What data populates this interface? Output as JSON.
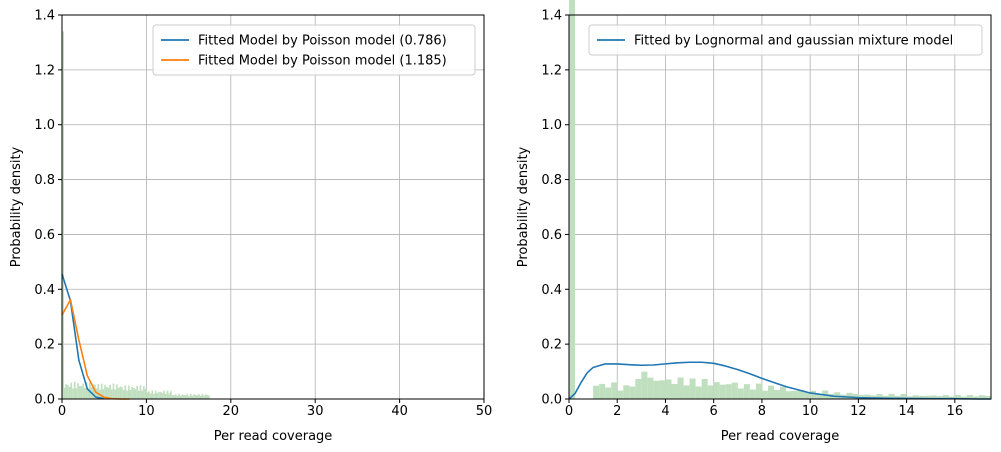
{
  "colors": {
    "series_blue": "#1f77b4",
    "series_orange": "#ff7f0e",
    "histogram": "#bfdfbf",
    "grid": "#b0b0b0",
    "axes": "#000000",
    "legend_border": "#cccccc"
  },
  "chart_data": [
    {
      "type": "line",
      "xlabel": "Per read coverage",
      "ylabel": "Probability density",
      "xlim": [
        0,
        50
      ],
      "ylim": [
        0,
        1.4
      ],
      "xticks": [
        0,
        10,
        20,
        30,
        40,
        50
      ],
      "yticks": [
        0.0,
        0.2,
        0.4,
        0.6,
        0.8,
        1.0,
        1.2,
        1.4
      ],
      "xtick_labels": [
        "0",
        "10",
        "20",
        "30",
        "40",
        "50"
      ],
      "ytick_labels": [
        "0.0",
        "0.2",
        "0.4",
        "0.6",
        "0.8",
        "1.0",
        "1.2",
        "1.4"
      ],
      "grid": true,
      "legend_position": "top-right",
      "histogram": {
        "bin_width": 0.2,
        "spike": {
          "x": 0,
          "height": 1.34
        },
        "bins": [
          {
            "start": 0.2,
            "end": 4.0,
            "height": 0.05
          },
          {
            "start": 4.0,
            "end": 7.0,
            "height": 0.045
          },
          {
            "start": 7.0,
            "end": 10.0,
            "height": 0.04
          },
          {
            "start": 10.0,
            "end": 13.0,
            "height": 0.025
          },
          {
            "start": 13.0,
            "end": 17.5,
            "height": 0.015
          }
        ]
      },
      "series": [
        {
          "name": "Fitted Model by Poisson model (0.786)",
          "color": "#1f77b4",
          "x": [
            0,
            1,
            2,
            3,
            4,
            5
          ],
          "y": [
            0.456,
            0.358,
            0.141,
            0.037,
            0.007,
            0.001
          ]
        },
        {
          "name": "Fitted Model by Poisson model (1.185)",
          "color": "#ff7f0e",
          "x": [
            0,
            1,
            2,
            3,
            4,
            5,
            6,
            7,
            8
          ],
          "y": [
            0.306,
            0.362,
            0.215,
            0.085,
            0.025,
            0.006,
            0.001,
            0.0,
            0.0
          ]
        }
      ]
    },
    {
      "type": "line",
      "xlabel": "Per read coverage",
      "ylabel": "Probability density",
      "xlim": [
        0,
        17.5
      ],
      "ylim": [
        0,
        1.4
      ],
      "xticks": [
        0,
        2,
        4,
        6,
        8,
        10,
        12,
        14,
        16
      ],
      "yticks": [
        0.0,
        0.2,
        0.4,
        0.6,
        0.8,
        1.0,
        1.2,
        1.4
      ],
      "xtick_labels": [
        "0",
        "2",
        "4",
        "6",
        "8",
        "10",
        "12",
        "14",
        "16"
      ],
      "ytick_labels": [
        "0.0",
        "0.2",
        "0.4",
        "0.6",
        "0.8",
        "1.0",
        "1.2",
        "1.4"
      ],
      "grid": true,
      "legend_position": "top-right",
      "histogram": {
        "bin_width": 0.25,
        "bins": [
          {
            "start": 0.0,
            "end": 0.25,
            "height": 1.34
          },
          {
            "start": 1.0,
            "end": 1.5,
            "height": 0.05
          },
          {
            "start": 1.5,
            "end": 2.0,
            "height": 0.05
          },
          {
            "start": 2.0,
            "end": 2.5,
            "height": 0.04
          },
          {
            "start": 2.5,
            "end": 3.0,
            "height": 0.06
          },
          {
            "start": 3.0,
            "end": 3.25,
            "height": 0.12
          },
          {
            "start": 3.25,
            "end": 4.0,
            "height": 0.07
          },
          {
            "start": 4.0,
            "end": 5.0,
            "height": 0.065
          },
          {
            "start": 5.0,
            "end": 6.0,
            "height": 0.06
          },
          {
            "start": 6.0,
            "end": 7.0,
            "height": 0.055
          },
          {
            "start": 7.0,
            "end": 8.0,
            "height": 0.045
          },
          {
            "start": 8.0,
            "end": 9.0,
            "height": 0.04
          },
          {
            "start": 9.0,
            "end": 10.0,
            "height": 0.03
          },
          {
            "start": 10.0,
            "end": 11.0,
            "height": 0.025
          },
          {
            "start": 11.0,
            "end": 12.0,
            "height": 0.02
          },
          {
            "start": 12.0,
            "end": 14.0,
            "height": 0.015
          },
          {
            "start": 14.0,
            "end": 17.5,
            "height": 0.012
          }
        ]
      },
      "series": [
        {
          "name": "Fitted by Lognormal and gaussian mixture model",
          "color": "#1f77b4",
          "x": [
            0,
            0.25,
            0.5,
            0.75,
            1.0,
            1.5,
            2.0,
            2.5,
            3.0,
            3.5,
            4.0,
            4.5,
            5.0,
            5.5,
            6.0,
            6.5,
            7.0,
            7.5,
            8.0,
            9.0,
            10.0,
            11.0,
            12.0,
            13.0,
            14.0,
            15.0,
            16.0,
            17.0,
            17.5
          ],
          "y": [
            0.0,
            0.02,
            0.06,
            0.095,
            0.115,
            0.128,
            0.128,
            0.125,
            0.123,
            0.124,
            0.128,
            0.132,
            0.134,
            0.134,
            0.13,
            0.12,
            0.107,
            0.092,
            0.075,
            0.045,
            0.022,
            0.01,
            0.005,
            0.003,
            0.002,
            0.001,
            0.001,
            0.0,
            0.0
          ]
        }
      ]
    }
  ]
}
